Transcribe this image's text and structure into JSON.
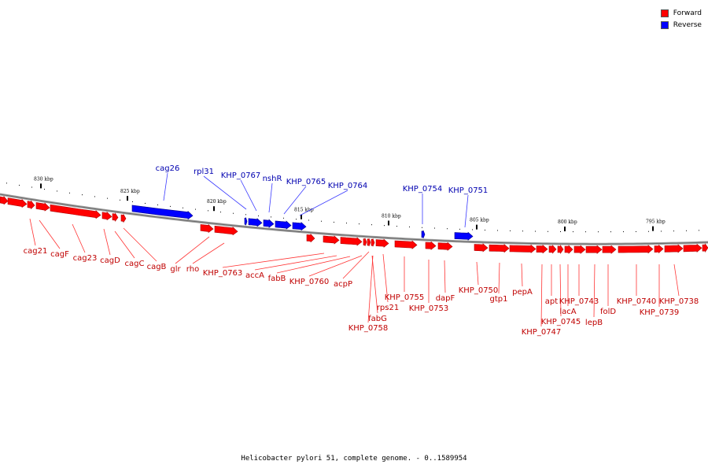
{
  "title": "Helicobacter pylori 51, complete genome. - 0..1589954",
  "legend": [
    {
      "label": "Forward",
      "color": "#ff0000"
    },
    {
      "label": "Reverse",
      "color": "#0000ff"
    }
  ],
  "colors": {
    "forward": "#ff0000",
    "reverse": "#0000ff",
    "backbone": "#808080"
  },
  "ticks": [
    "830 kbp",
    "825 kbp",
    "820 kbp",
    "815 kbp",
    "810 kbp",
    "805 kbp",
    "800 kbp",
    "795 kbp"
  ],
  "genes": [
    {
      "name": "cag21",
      "strand": "forward"
    },
    {
      "name": "cagF",
      "strand": "forward"
    },
    {
      "name": "cag23",
      "strand": "forward"
    },
    {
      "name": "cagD",
      "strand": "forward"
    },
    {
      "name": "cagC",
      "strand": "forward"
    },
    {
      "name": "cagB",
      "strand": "forward"
    },
    {
      "name": "cag26",
      "strand": "reverse"
    },
    {
      "name": "glr",
      "strand": "forward"
    },
    {
      "name": "rho",
      "strand": "forward"
    },
    {
      "name": "rpl31",
      "strand": "reverse"
    },
    {
      "name": "KHP_0767",
      "strand": "reverse"
    },
    {
      "name": "nshR",
      "strand": "reverse"
    },
    {
      "name": "KHP_0765",
      "strand": "reverse"
    },
    {
      "name": "KHP_0764",
      "strand": "reverse"
    },
    {
      "name": "KHP_0763",
      "strand": "forward"
    },
    {
      "name": "accA",
      "strand": "forward"
    },
    {
      "name": "fabB",
      "strand": "forward"
    },
    {
      "name": "KHP_0760",
      "strand": "forward"
    },
    {
      "name": "acpP",
      "strand": "forward"
    },
    {
      "name": "fabG",
      "strand": "forward"
    },
    {
      "name": "KHP_0758",
      "strand": "forward"
    },
    {
      "name": "rps21",
      "strand": "forward"
    },
    {
      "name": "KHP_0755",
      "strand": "forward"
    },
    {
      "name": "KHP_0754",
      "strand": "reverse"
    },
    {
      "name": "KHP_0753",
      "strand": "forward"
    },
    {
      "name": "dapF",
      "strand": "forward"
    },
    {
      "name": "KHP_0751",
      "strand": "reverse"
    },
    {
      "name": "KHP_0750",
      "strand": "forward"
    },
    {
      "name": "gtp1",
      "strand": "forward"
    },
    {
      "name": "pepA",
      "strand": "forward"
    },
    {
      "name": "KHP_0747",
      "strand": "forward"
    },
    {
      "name": "apt",
      "strand": "forward"
    },
    {
      "name": "KHP_0745",
      "strand": "forward"
    },
    {
      "name": "lacA",
      "strand": "forward"
    },
    {
      "name": "KHP_0743",
      "strand": "forward"
    },
    {
      "name": "lepB",
      "strand": "forward"
    },
    {
      "name": "folD",
      "strand": "forward"
    },
    {
      "name": "KHP_0740",
      "strand": "forward"
    },
    {
      "name": "KHP_0739",
      "strand": "forward"
    },
    {
      "name": "KHP_0738",
      "strand": "forward"
    }
  ]
}
